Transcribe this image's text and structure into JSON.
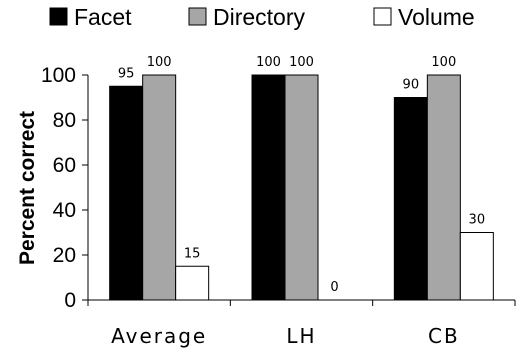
{
  "chart_data": {
    "type": "bar",
    "title": "",
    "xlabel": "",
    "ylabel": "Percent correct",
    "ylim": [
      0,
      100
    ],
    "yticks": [
      0,
      20,
      40,
      60,
      80,
      100
    ],
    "categories": [
      "Average",
      "LH",
      "CB"
    ],
    "series": [
      {
        "name": "Facet",
        "values": [
          95,
          100,
          90
        ],
        "color": "#000000"
      },
      {
        "name": "Directory",
        "values": [
          100,
          100,
          100
        ],
        "color": "#a6a6a6"
      },
      {
        "name": "Volume",
        "values": [
          15,
          0,
          30
        ],
        "color": "#ffffff"
      }
    ],
    "data_labels": [
      [
        "95",
        "100",
        "15"
      ],
      [
        "100",
        "100",
        "0"
      ],
      [
        "90",
        "100",
        "30"
      ]
    ],
    "legend_position": "top",
    "grid": false
  }
}
